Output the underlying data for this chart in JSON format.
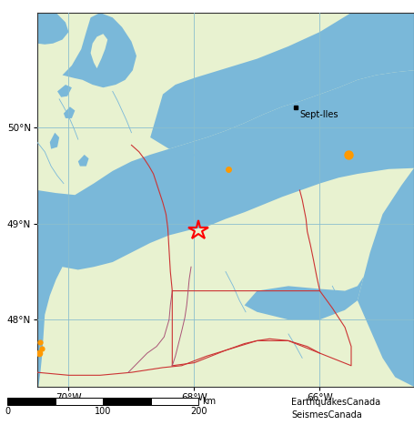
{
  "figsize": [
    4.55,
    4.67
  ],
  "dpi": 100,
  "xlim": [
    -70.5,
    -64.5
  ],
  "ylim": [
    47.3,
    51.2
  ],
  "land_color": "#e8f2d0",
  "water_color": "#7ab8d9",
  "grid_color": "#8bbfce",
  "map_bg": "#e8f2d0",
  "xticks": [
    -70,
    -68,
    -66
  ],
  "yticks": [
    48,
    49,
    50
  ],
  "xtick_labels": [
    "70°W",
    "68°W",
    "66°W"
  ],
  "ytick_labels": [
    "48°N",
    "49°N",
    "50°N"
  ],
  "earthquakes": [
    {
      "lon": -67.45,
      "lat": 49.57,
      "size": 10
    },
    {
      "lon": -65.55,
      "lat": 49.72,
      "size": 15
    },
    {
      "lon": -70.45,
      "lat": 47.76,
      "size": 9
    },
    {
      "lon": -70.42,
      "lat": 47.7,
      "size": 9
    },
    {
      "lon": -70.47,
      "lat": 47.65,
      "size": 11
    }
  ],
  "eq_color": "#ff9900",
  "star_lon": -67.93,
  "star_lat": 48.93,
  "star_color": "#ff0000",
  "sept_iles_lon": -66.38,
  "sept_iles_lat": 50.21,
  "attribution1": "EarthquakesCanada",
  "attribution2": "SeismesCanada",
  "stlaw_south": [
    [
      -70.5,
      48.72
    ],
    [
      -70.3,
      48.62
    ],
    [
      -70.1,
      48.55
    ],
    [
      -69.85,
      48.52
    ],
    [
      -69.6,
      48.55
    ],
    [
      -69.3,
      48.6
    ],
    [
      -69.0,
      48.7
    ],
    [
      -68.7,
      48.8
    ],
    [
      -68.4,
      48.88
    ],
    [
      -68.1,
      48.93
    ],
    [
      -67.8,
      48.97
    ],
    [
      -67.5,
      49.05
    ],
    [
      -67.2,
      49.12
    ],
    [
      -66.9,
      49.2
    ],
    [
      -66.6,
      49.28
    ],
    [
      -66.3,
      49.35
    ],
    [
      -66.0,
      49.42
    ],
    [
      -65.7,
      49.48
    ],
    [
      -65.4,
      49.52
    ],
    [
      -65.1,
      49.55
    ],
    [
      -64.9,
      49.57
    ],
    [
      -64.5,
      49.58
    ]
  ],
  "stlaw_north": [
    [
      -70.5,
      49.35
    ],
    [
      -70.2,
      49.32
    ],
    [
      -69.9,
      49.3
    ],
    [
      -69.6,
      49.42
    ],
    [
      -69.3,
      49.55
    ],
    [
      -69.0,
      49.65
    ],
    [
      -68.7,
      49.72
    ],
    [
      -68.4,
      49.78
    ],
    [
      -68.1,
      49.84
    ],
    [
      -67.8,
      49.9
    ],
    [
      -67.5,
      49.97
    ],
    [
      -67.2,
      50.05
    ],
    [
      -66.9,
      50.14
    ],
    [
      -66.6,
      50.22
    ],
    [
      -66.3,
      50.28
    ],
    [
      -66.0,
      50.35
    ],
    [
      -65.7,
      50.42
    ],
    [
      -65.4,
      50.5
    ],
    [
      -65.1,
      50.55
    ],
    [
      -64.8,
      50.58
    ],
    [
      -64.5,
      50.6
    ]
  ],
  "sw_water": [
    [
      -70.5,
      47.3
    ],
    [
      -70.5,
      48.85
    ],
    [
      -70.35,
      48.78
    ],
    [
      -70.2,
      48.68
    ],
    [
      -70.1,
      48.55
    ],
    [
      -70.2,
      48.42
    ],
    [
      -70.3,
      48.25
    ],
    [
      -70.38,
      48.05
    ],
    [
      -70.4,
      47.85
    ],
    [
      -70.42,
      47.65
    ],
    [
      -70.45,
      47.45
    ],
    [
      -70.48,
      47.3
    ]
  ],
  "gulf_ne": [
    [
      -64.5,
      50.6
    ],
    [
      -64.5,
      51.2
    ],
    [
      -65.5,
      51.2
    ],
    [
      -66.0,
      51.0
    ],
    [
      -66.5,
      50.85
    ],
    [
      -67.0,
      50.72
    ],
    [
      -67.5,
      50.62
    ],
    [
      -68.0,
      50.52
    ],
    [
      -68.3,
      50.45
    ],
    [
      -68.5,
      50.35
    ],
    [
      -68.7,
      49.9
    ],
    [
      -68.4,
      49.78
    ],
    [
      -68.1,
      49.84
    ],
    [
      -67.8,
      49.9
    ],
    [
      -67.5,
      49.97
    ],
    [
      -67.2,
      50.05
    ],
    [
      -66.9,
      50.14
    ],
    [
      -66.6,
      50.22
    ],
    [
      -66.3,
      50.28
    ],
    [
      -66.0,
      50.35
    ],
    [
      -65.7,
      50.42
    ],
    [
      -65.4,
      50.5
    ],
    [
      -65.1,
      50.55
    ],
    [
      -64.8,
      50.58
    ],
    [
      -64.5,
      50.6
    ]
  ],
  "right_coast": [
    [
      -64.5,
      47.3
    ],
    [
      -64.5,
      49.58
    ],
    [
      -64.7,
      49.4
    ],
    [
      -65.0,
      49.1
    ],
    [
      -65.2,
      48.7
    ],
    [
      -65.3,
      48.45
    ],
    [
      -65.4,
      48.2
    ],
    [
      -65.2,
      47.9
    ],
    [
      -65.0,
      47.6
    ],
    [
      -64.8,
      47.4
    ]
  ],
  "br_inlet": [
    [
      -65.3,
      48.45
    ],
    [
      -65.4,
      48.2
    ],
    [
      -65.6,
      48.1
    ],
    [
      -66.0,
      48.0
    ],
    [
      -66.5,
      48.0
    ],
    [
      -67.0,
      48.08
    ],
    [
      -67.2,
      48.15
    ],
    [
      -67.0,
      48.3
    ],
    [
      -66.5,
      48.35
    ],
    [
      -66.0,
      48.32
    ],
    [
      -65.6,
      48.3
    ],
    [
      -65.4,
      48.35
    ]
  ],
  "nw_lake_outer": [
    [
      -70.1,
      50.55
    ],
    [
      -69.95,
      50.65
    ],
    [
      -69.8,
      50.82
    ],
    [
      -69.72,
      51.0
    ],
    [
      -69.65,
      51.15
    ],
    [
      -69.5,
      51.2
    ],
    [
      -69.3,
      51.15
    ],
    [
      -69.15,
      51.05
    ],
    [
      -69.0,
      50.9
    ],
    [
      -68.92,
      50.75
    ],
    [
      -68.98,
      50.6
    ],
    [
      -69.1,
      50.5
    ],
    [
      -69.25,
      50.45
    ],
    [
      -69.45,
      50.42
    ],
    [
      -69.62,
      50.45
    ],
    [
      -69.78,
      50.5
    ],
    [
      -69.92,
      50.52
    ]
  ],
  "nw_lake_inner": [
    [
      -69.55,
      50.62
    ],
    [
      -69.48,
      50.72
    ],
    [
      -69.42,
      50.82
    ],
    [
      -69.38,
      50.92
    ],
    [
      -69.45,
      50.98
    ],
    [
      -69.55,
      50.95
    ],
    [
      -69.62,
      50.88
    ],
    [
      -69.65,
      50.78
    ],
    [
      -69.6,
      50.68
    ]
  ],
  "nw_small_lakes": [
    [
      [
        -70.18,
        50.38
      ],
      [
        -70.05,
        50.45
      ],
      [
        -69.95,
        50.42
      ],
      [
        -70.02,
        50.33
      ],
      [
        -70.12,
        50.32
      ]
    ],
    [
      [
        -70.08,
        50.15
      ],
      [
        -69.98,
        50.22
      ],
      [
        -69.9,
        50.18
      ],
      [
        -69.95,
        50.1
      ],
      [
        -70.05,
        50.1
      ]
    ],
    [
      [
        -70.3,
        49.85
      ],
      [
        -70.22,
        49.95
      ],
      [
        -70.15,
        49.9
      ],
      [
        -70.18,
        49.8
      ],
      [
        -70.28,
        49.78
      ]
    ],
    [
      [
        -69.85,
        49.65
      ],
      [
        -69.75,
        49.72
      ],
      [
        -69.68,
        49.68
      ],
      [
        -69.72,
        49.6
      ],
      [
        -69.82,
        49.6
      ]
    ]
  ],
  "nw_top_water": [
    [
      -70.5,
      50.88
    ],
    [
      -70.5,
      51.2
    ],
    [
      -70.2,
      51.2
    ],
    [
      -70.05,
      51.1
    ],
    [
      -70.0,
      51.0
    ],
    [
      -70.1,
      50.92
    ],
    [
      -70.25,
      50.88
    ],
    [
      -70.38,
      50.87
    ]
  ],
  "river_lines": [
    [
      [
        -70.5,
        49.85
      ],
      [
        -70.38,
        49.75
      ],
      [
        -70.28,
        49.6
      ],
      [
        -70.18,
        49.5
      ],
      [
        -70.08,
        49.42
      ]
    ],
    [
      [
        -70.15,
        50.3
      ],
      [
        -70.08,
        50.22
      ],
      [
        -70.0,
        50.12
      ],
      [
        -69.92,
        50.0
      ],
      [
        -69.85,
        49.88
      ]
    ],
    [
      [
        -69.3,
        50.38
      ],
      [
        -69.22,
        50.28
      ],
      [
        -69.15,
        50.18
      ],
      [
        -69.08,
        50.08
      ],
      [
        -69.0,
        49.95
      ]
    ],
    [
      [
        -68.5,
        50.3
      ],
      [
        -68.42,
        50.22
      ],
      [
        -68.35,
        50.1
      ]
    ],
    [
      [
        -68.0,
        49.72
      ],
      [
        -67.88,
        49.55
      ],
      [
        -67.78,
        49.42
      ],
      [
        -67.7,
        49.3
      ]
    ],
    [
      [
        -67.5,
        48.5
      ],
      [
        -67.38,
        48.35
      ],
      [
        -67.28,
        48.2
      ],
      [
        -67.18,
        48.08
      ]
    ],
    [
      [
        -66.5,
        47.85
      ],
      [
        -66.38,
        47.72
      ],
      [
        -66.28,
        47.6
      ]
    ],
    [
      [
        -65.8,
        48.35
      ],
      [
        -65.7,
        48.22
      ],
      [
        -65.62,
        48.1
      ]
    ]
  ],
  "border_us_canada": [
    [
      -70.5,
      47.45
    ],
    [
      -70.0,
      47.42
    ],
    [
      -69.5,
      47.42
    ],
    [
      -69.0,
      47.45
    ],
    [
      -68.5,
      47.5
    ],
    [
      -68.2,
      47.52
    ],
    [
      -67.8,
      47.62
    ],
    [
      -67.5,
      47.68
    ],
    [
      -67.2,
      47.75
    ],
    [
      -67.0,
      47.78
    ],
    [
      -66.8,
      47.8
    ],
    [
      -66.5,
      47.78
    ],
    [
      -66.2,
      47.72
    ],
    [
      -66.0,
      47.65
    ]
  ],
  "border_nb_qc": [
    [
      -69.05,
      47.45
    ],
    [
      -68.9,
      47.55
    ],
    [
      -68.75,
      47.65
    ],
    [
      -68.6,
      47.72
    ],
    [
      -68.48,
      47.82
    ],
    [
      -68.4,
      48.0
    ],
    [
      -68.38,
      48.15
    ],
    [
      -68.35,
      48.3
    ]
  ],
  "border_rect": [
    [
      -68.35,
      47.52
    ],
    [
      -68.35,
      48.3
    ],
    [
      -66.0,
      48.3
    ],
    [
      -65.8,
      48.12
    ],
    [
      -65.6,
      47.92
    ],
    [
      -65.5,
      47.72
    ],
    [
      -65.5,
      47.52
    ],
    [
      -66.0,
      47.65
    ],
    [
      -66.5,
      47.78
    ],
    [
      -67.0,
      47.78
    ],
    [
      -67.5,
      47.68
    ],
    [
      -68.0,
      47.55
    ],
    [
      -68.35,
      47.52
    ]
  ],
  "prov_border_red": [
    [
      -68.35,
      48.3
    ],
    [
      -68.38,
      48.5
    ],
    [
      -68.4,
      48.72
    ],
    [
      -68.42,
      48.95
    ],
    [
      -68.45,
      49.1
    ],
    [
      -68.5,
      49.22
    ],
    [
      -68.55,
      49.32
    ],
    [
      -68.6,
      49.42
    ],
    [
      -68.65,
      49.52
    ],
    [
      -68.72,
      49.6
    ],
    [
      -68.8,
      49.68
    ],
    [
      -68.88,
      49.75
    ],
    [
      -69.0,
      49.82
    ]
  ],
  "prov_border_red2": [
    [
      -66.0,
      48.3
    ],
    [
      -66.05,
      48.45
    ],
    [
      -66.1,
      48.62
    ],
    [
      -66.15,
      48.78
    ],
    [
      -66.2,
      48.92
    ],
    [
      -66.22,
      49.05
    ],
    [
      -66.25,
      49.15
    ],
    [
      -66.28,
      49.25
    ],
    [
      -66.32,
      49.35
    ]
  ],
  "prov_border_purple": [
    [
      -68.35,
      47.52
    ],
    [
      -68.3,
      47.62
    ],
    [
      -68.25,
      47.75
    ],
    [
      -68.2,
      47.88
    ],
    [
      -68.15,
      48.02
    ],
    [
      -68.12,
      48.15
    ],
    [
      -68.1,
      48.28
    ],
    [
      -68.08,
      48.42
    ],
    [
      -68.05,
      48.55
    ]
  ]
}
